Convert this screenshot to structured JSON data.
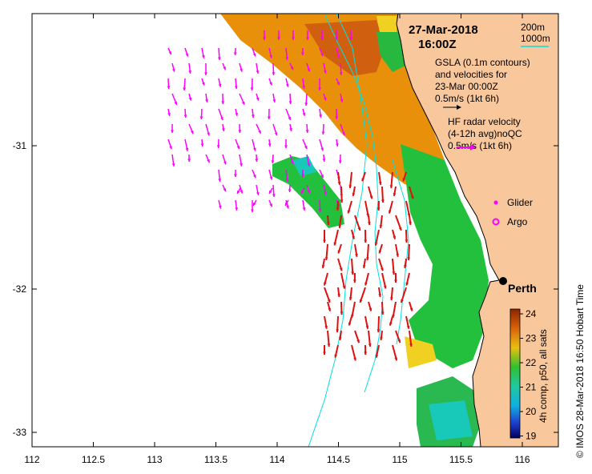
{
  "map": {
    "date": "27-Mar-2018",
    "time": "16:00Z",
    "depth_legend": [
      "200m",
      "1000m"
    ],
    "gsla_text": [
      "GSLA (0.1m contours)",
      "and velocities for",
      "23-Mar 00:00Z",
      "0.5m/s (1kt 6h)"
    ],
    "radar_text": [
      "HF radar velocity",
      "(4-12h avg)noQC",
      "0.5m/s (1kt 6h)"
    ],
    "legend_glider": "Glider",
    "legend_argo": "Argo",
    "city": "Perth",
    "x_ticks": [
      "112",
      "112.5",
      "113",
      "113.5",
      "114",
      "114.5",
      "115",
      "115.5",
      "116"
    ],
    "y_ticks": [
      "-31",
      "-32",
      "-33"
    ],
    "colorbar": {
      "ticks": [
        "24",
        "23",
        "22",
        "21",
        "20",
        "19"
      ],
      "label": "4h comp, p50, all sats"
    },
    "credit": "© IMOS 28-Mar-2018 16:50 Hobart Time",
    "colors": {
      "land": "#f9c79c",
      "radar_arrow": "#ff00ff",
      "gsla_arrow": "#e01010",
      "isobath": "#00e0e0",
      "warm_sst": "#e8900a",
      "mid_sst": "#22c03c",
      "cool_sst": "#18c8b8"
    }
  }
}
